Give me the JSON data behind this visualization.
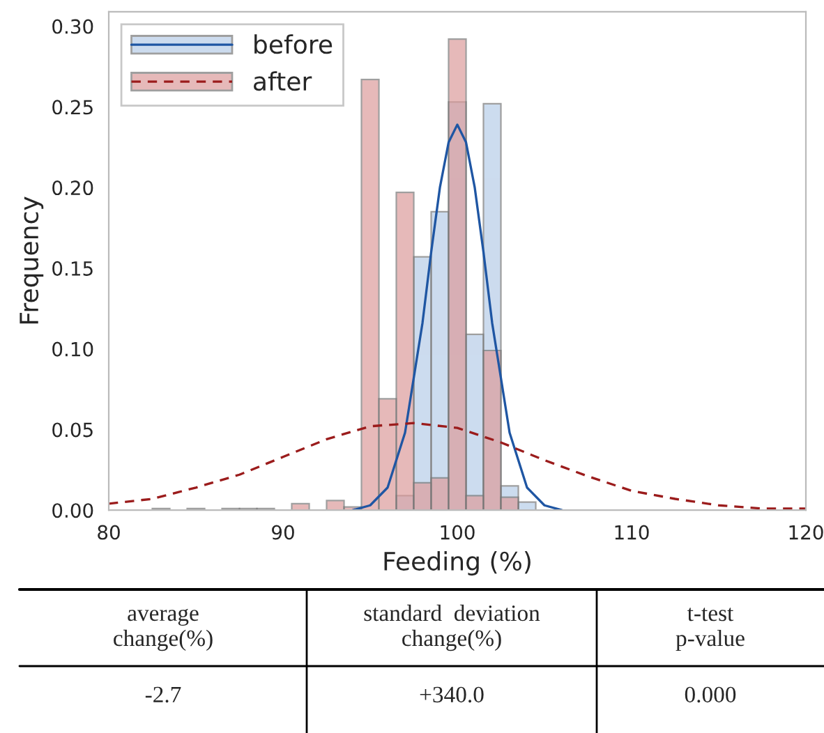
{
  "chart_data": {
    "type": "histogram",
    "xlabel": "Feeding (%)",
    "ylabel": "Frequency",
    "bins": [
      82.5,
      83.5,
      84.5,
      85.5,
      86.5,
      87.5,
      88.5,
      89.5,
      90.5,
      91.5,
      92.5,
      93.5,
      94.5,
      95.5,
      96.5,
      97.5,
      98.5,
      99.5,
      100.5,
      101.5,
      102.5,
      103.5,
      104.5
    ],
    "series": [
      {
        "name": "before",
        "type": "histogram",
        "color": "#b7cde8",
        "values": [
          null,
          null,
          null,
          null,
          null,
          null,
          null,
          null,
          null,
          null,
          null,
          null,
          null,
          null,
          0.009,
          0.157,
          0.185,
          0.253,
          0.109,
          0.252,
          0.015,
          0.005
        ]
      },
      {
        "name": "after",
        "type": "histogram",
        "color": "#dc9c9c",
        "values": [
          0.001,
          null,
          0.001,
          null,
          0.001,
          0.001,
          0.001,
          null,
          0.004,
          null,
          0.006,
          0.002,
          0.267,
          0.069,
          0.197,
          0.017,
          0.02,
          0.292,
          0.009,
          0.099,
          0.008,
          null
        ]
      },
      {
        "type": "line",
        "color": "#1f56a3",
        "line_style": "solid",
        "x": [
          94,
          95,
          96,
          97,
          98,
          98.5,
          99,
          99.5,
          100,
          100.5,
          101,
          101.5,
          102,
          103,
          104,
          105,
          106
        ],
        "values": [
          0.0,
          0.003,
          0.014,
          0.048,
          0.116,
          0.16,
          0.2,
          0.228,
          0.239,
          0.228,
          0.2,
          0.16,
          0.116,
          0.048,
          0.014,
          0.003,
          0.0
        ]
      },
      {
        "type": "line",
        "color": "#9b1c1c",
        "line_style": "dashed",
        "x": [
          80,
          82.5,
          85,
          87.5,
          90,
          92.5,
          95,
          97.5,
          100,
          102.5,
          105,
          107.5,
          110,
          112.5,
          115,
          117.5,
          120
        ],
        "values": [
          0.004,
          0.007,
          0.014,
          0.022,
          0.033,
          0.044,
          0.052,
          0.054,
          0.051,
          0.042,
          0.031,
          0.021,
          0.012,
          0.007,
          0.003,
          0.001,
          0.001
        ]
      }
    ],
    "xlim": [
      80,
      120
    ],
    "xticks": [
      80,
      90,
      100,
      110,
      120
    ],
    "ylim": [
      0,
      0.309
    ],
    "yticks": [
      {
        "value": 0,
        "label": "0.00"
      },
      {
        "value": 0.05,
        "label": "0.05"
      },
      {
        "value": 0.1,
        "label": "0.10"
      },
      {
        "value": 0.15,
        "label": "0.15"
      },
      {
        "value": 0.2,
        "label": "0.20"
      },
      {
        "value": 0.25,
        "label": "0.25"
      },
      {
        "value": 0.3,
        "label": "0.30"
      }
    ],
    "grid": false,
    "legend": "top left",
    "annotations": [
      "average\nchange(%)",
      "standard  deviation\nchange(%)",
      "t-test\np-value",
      "-2.7",
      "+340.0",
      "0.000"
    ]
  }
}
